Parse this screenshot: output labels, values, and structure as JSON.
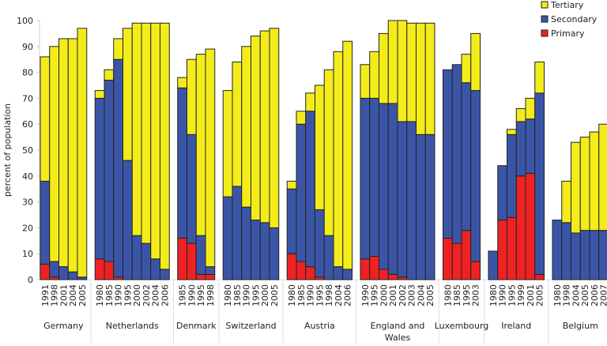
{
  "chart_data": {
    "type": "bar",
    "stacked": true,
    "title": "",
    "xlabel": "",
    "ylabel": "percent of population",
    "ylim": [
      0,
      100
    ],
    "yticks": [
      0,
      10,
      20,
      30,
      40,
      50,
      60,
      70,
      80,
      90,
      100
    ],
    "legend_position": "top-right",
    "series_names": [
      "Primary",
      "Secondary",
      "Tertiary"
    ],
    "legend": [
      "Tertiary",
      "Secondary",
      "Primary"
    ],
    "colors": {
      "Primary": "#ee2222",
      "Secondary": "#3b55a6",
      "Tertiary": "#f3ec1a"
    },
    "groups": [
      {
        "country": "Germany",
        "years": [
          "1991",
          "1998",
          "2001",
          "2004",
          "2005"
        ],
        "primary": [
          6,
          1,
          0,
          0,
          0
        ],
        "secondary": [
          32,
          6,
          5,
          3,
          1
        ],
        "tertiary": [
          48,
          83,
          88,
          90,
          96
        ]
      },
      {
        "country": "Netherlands",
        "years": [
          "1980",
          "1985",
          "1990",
          "1995",
          "2000",
          "2002",
          "2004",
          "2006"
        ],
        "primary": [
          8,
          7,
          1,
          0,
          0,
          0,
          0,
          0
        ],
        "secondary": [
          62,
          70,
          84,
          46,
          17,
          14,
          8,
          4
        ],
        "tertiary": [
          3,
          4,
          8,
          51,
          82,
          85,
          91,
          95
        ]
      },
      {
        "country": "Denmark",
        "years": [
          "1985",
          "1990",
          "1995",
          "1998"
        ],
        "primary": [
          16,
          14,
          2,
          2
        ],
        "secondary": [
          58,
          42,
          15,
          3
        ],
        "tertiary": [
          4,
          29,
          70,
          84
        ]
      },
      {
        "country": "Switzerland",
        "years": [
          "1980",
          "1985",
          "1990",
          "1995",
          "2000",
          "2005"
        ],
        "primary": [
          0,
          0,
          0,
          0,
          0,
          0
        ],
        "secondary": [
          32,
          36,
          28,
          23,
          22,
          20
        ],
        "tertiary": [
          41,
          48,
          62,
          71,
          74,
          77
        ]
      },
      {
        "country": "Austria",
        "years": [
          "1980",
          "1985",
          "1990",
          "1995",
          "1998",
          "2004",
          "2006"
        ],
        "primary": [
          10,
          7,
          5,
          1,
          0,
          0,
          0
        ],
        "secondary": [
          25,
          53,
          60,
          26,
          17,
          5,
          4
        ],
        "tertiary": [
          3,
          5,
          7,
          48,
          64,
          83,
          88
        ]
      },
      {
        "country": "England and Wales",
        "country_lines": [
          "England and",
          "Wales"
        ],
        "years": [
          "1990",
          "1995",
          "2000",
          "2001",
          "2002",
          "2003",
          "2004",
          "2005"
        ],
        "primary": [
          8,
          9,
          4,
          2,
          1,
          0,
          0,
          0
        ],
        "secondary": [
          62,
          61,
          64,
          66,
          60,
          61,
          56,
          56
        ],
        "tertiary": [
          13,
          18,
          27,
          32,
          39,
          38,
          43,
          43
        ]
      },
      {
        "country": "Luxembourg",
        "years": [
          "1980",
          "1985",
          "1995",
          "2003"
        ],
        "primary": [
          16,
          14,
          19,
          7
        ],
        "secondary": [
          65,
          69,
          57,
          66
        ],
        "tertiary": [
          0,
          0,
          11,
          22
        ]
      },
      {
        "country": "Ireland",
        "years": [
          "1980",
          "1990",
          "1995",
          "1999",
          "2001",
          "2005"
        ],
        "primary": [
          0,
          23,
          24,
          40,
          41,
          2
        ],
        "secondary": [
          11,
          21,
          32,
          21,
          21,
          70
        ],
        "tertiary": [
          0,
          0,
          2,
          5,
          8,
          12
        ]
      },
      {
        "country": "Belgium",
        "years": [
          "1980",
          "1998",
          "2004",
          "2005",
          "2006",
          "2007"
        ],
        "primary": [
          0,
          0,
          0,
          0,
          0,
          0
        ],
        "secondary": [
          23,
          22,
          18,
          19,
          19,
          19
        ],
        "tertiary": [
          0,
          16,
          35,
          36,
          38,
          41
        ]
      }
    ]
  }
}
